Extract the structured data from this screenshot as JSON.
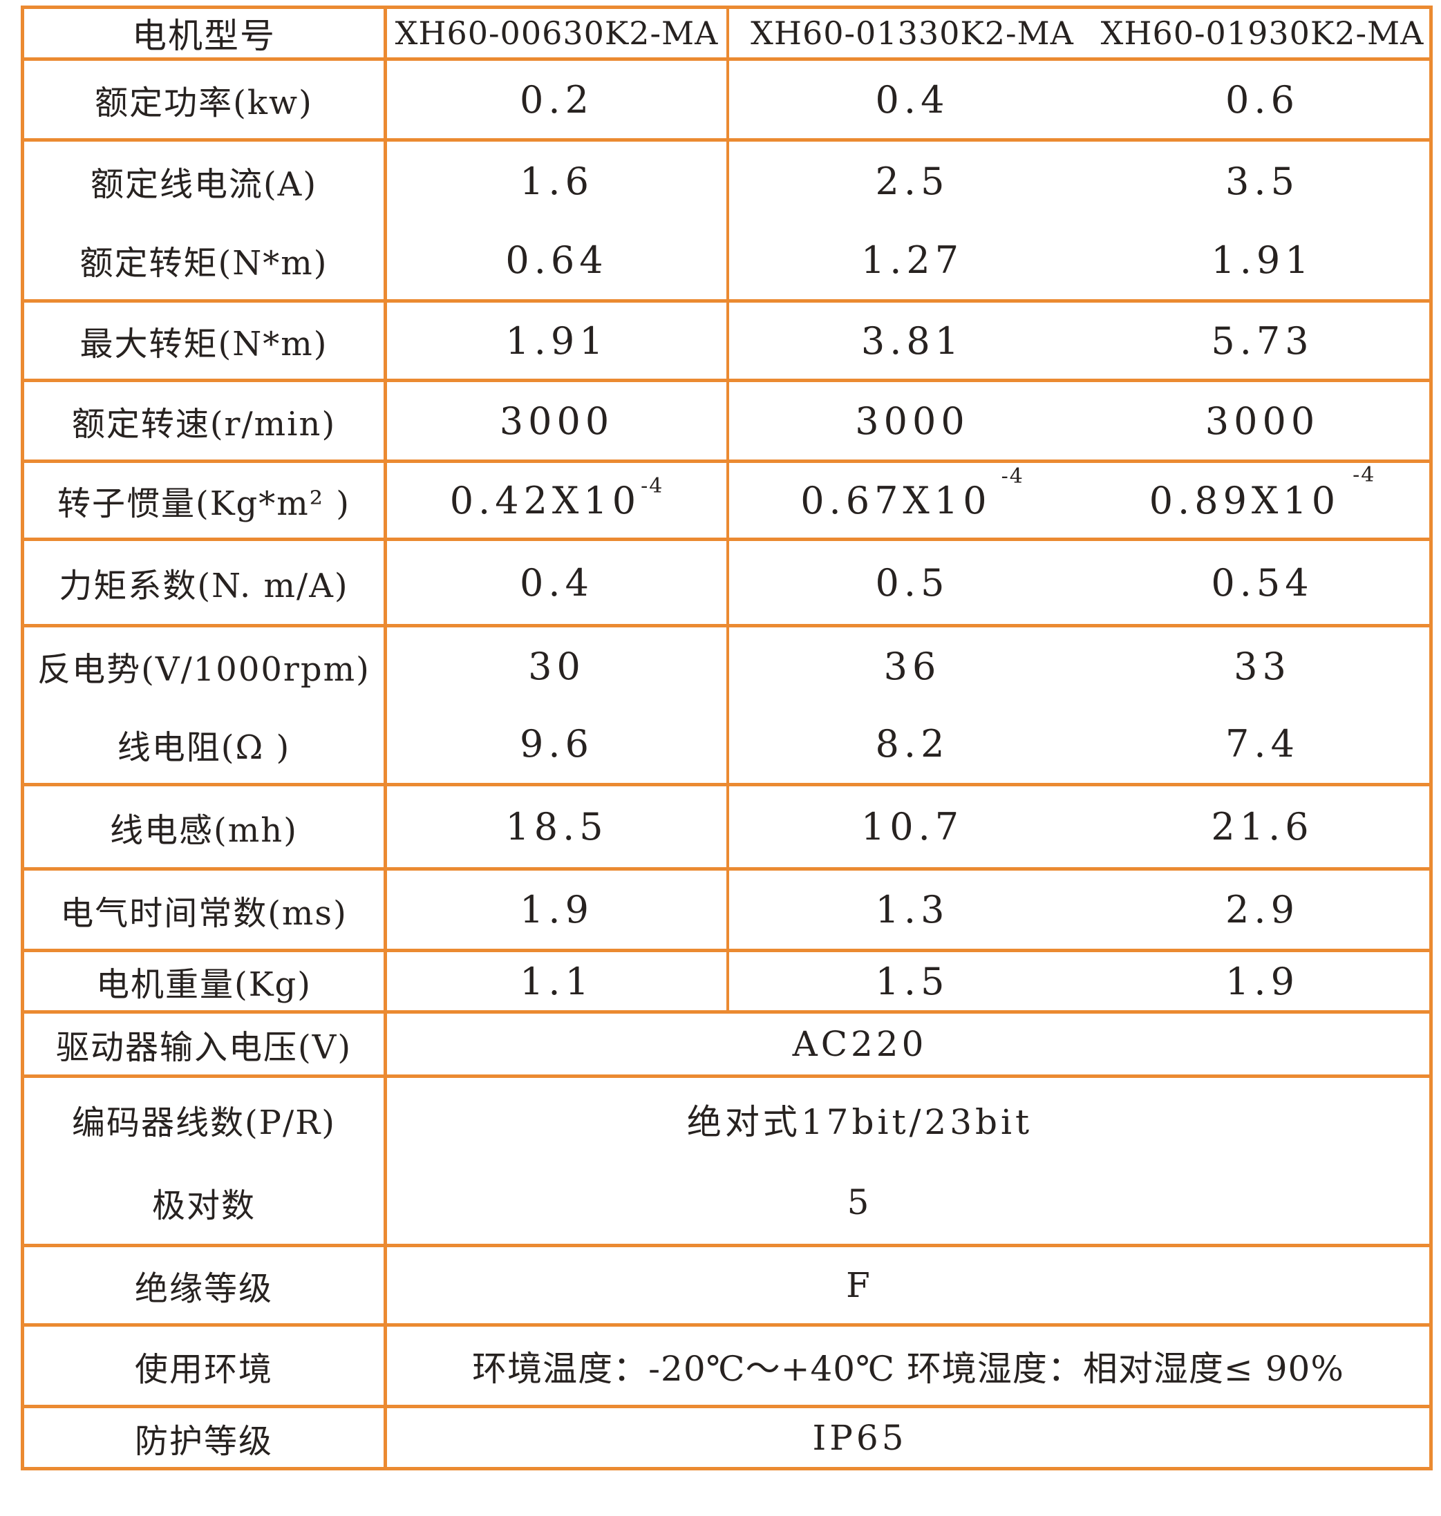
{
  "page": {
    "background": "#ffffff",
    "border_color": "#EB8A31",
    "text_color": "#272220"
  },
  "table": {
    "header": {
      "label": "电机型号",
      "m1": "XH60-00630K2-MA",
      "m2": "XH60-01330K2-MA",
      "m3": "XH60-01930K2-MA"
    },
    "r_power": {
      "label": "额定功率(kw)",
      "v1": "0.2",
      "v2": "0.4",
      "v3": "0.6"
    },
    "r_current": {
      "label": "额定线电流(A)",
      "v1": "1.6",
      "v2": "2.5",
      "v3": "3.5"
    },
    "r_torque": {
      "label": "额定转矩(N*m)",
      "v1": "0.64",
      "v2": "1.27",
      "v3": "1.91"
    },
    "r_maxtorque": {
      "label": "最大转矩(N*m)",
      "v1": "1.91",
      "v2": "3.81",
      "v3": "5.73"
    },
    "r_speed": {
      "label": "额定转速(r/min)",
      "v1": "3000",
      "v2": "3000",
      "v3": "3000"
    },
    "r_inertia": {
      "label": "转子惯量(Kg*m² )",
      "v1": "0.42X10",
      "v2": "0.67X10",
      "v3": "0.89X10",
      "sup": "-4"
    },
    "r_ktorque": {
      "label": "力矩系数(N. m/A)",
      "v1": "0.4",
      "v2": "0.5",
      "v3": "0.54"
    },
    "r_bemf": {
      "label": "反电势(V/1000rpm)",
      "v1": "30",
      "v2": "36",
      "v3": "33"
    },
    "r_resistance": {
      "label": "线电阻(Ω )",
      "v1": "9.6",
      "v2": "8.2",
      "v3": "7.4"
    },
    "r_inductance": {
      "label": "线电感(mh)",
      "v1": "18.5",
      "v2": "10.7",
      "v3": "21.6"
    },
    "r_tconst": {
      "label": "电气时间常数(ms)",
      "v1": "1.9",
      "v2": "1.3",
      "v3": "2.9"
    },
    "r_weight": {
      "label": "电机重量(Kg)",
      "v1": "1.1",
      "v2": "1.5",
      "v3": "1.9"
    },
    "r_voltage": {
      "label": "驱动器输入电压(V)",
      "value": "AC220"
    },
    "r_encoder": {
      "label": "编码器线数(P/R)",
      "value": "绝对式17bit/23bit"
    },
    "r_poles": {
      "label": "极对数",
      "value": "5"
    },
    "r_insulation": {
      "label": "绝缘等级",
      "value": "F"
    },
    "r_environment": {
      "label": "使用环境",
      "value": "环境温度：-20℃～+40℃  环境湿度：相对湿度≤ 90%"
    },
    "r_protection": {
      "label": "防护等级",
      "value": "IP65"
    }
  }
}
